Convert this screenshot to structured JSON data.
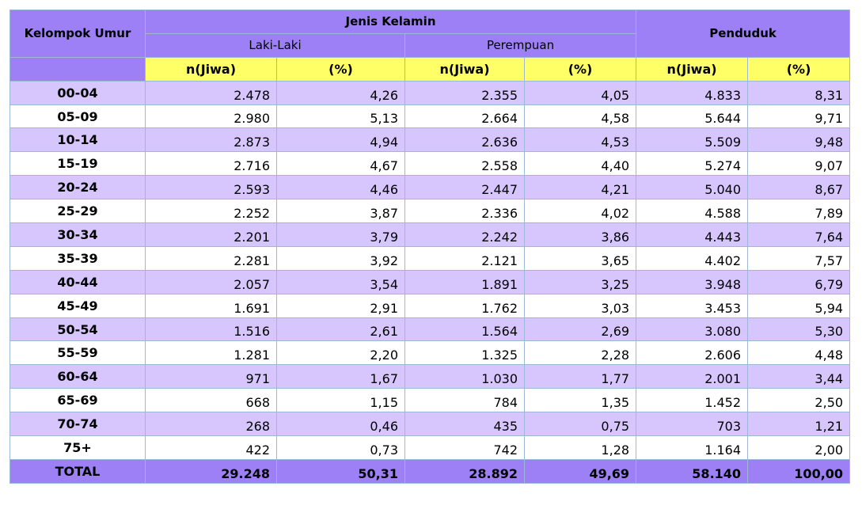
{
  "table": {
    "header": {
      "age_group": "Kelompok Umur",
      "sex": "Jenis Kelamin",
      "male": "Laki-Laki",
      "female": "Perempuan",
      "population": "Penduduk",
      "sub_headers": [
        "n(Jiwa)",
        "(%)",
        "n(Jiwa)",
        "(%)",
        "n(Jiwa)",
        "(%)"
      ]
    },
    "rows": [
      [
        "00-04",
        "2.478",
        "4,26",
        "2.355",
        "4,05",
        "4.833",
        "8,31"
      ],
      [
        "05-09",
        "2.980",
        "5,13",
        "2.664",
        "4,58",
        "5.644",
        "9,71"
      ],
      [
        "10-14",
        "2.873",
        "4,94",
        "2.636",
        "4,53",
        "5.509",
        "9,48"
      ],
      [
        "15-19",
        "2.716",
        "4,67",
        "2.558",
        "4,40",
        "5.274",
        "9,07"
      ],
      [
        "20-24",
        "2.593",
        "4,46",
        "2.447",
        "4,21",
        "5.040",
        "8,67"
      ],
      [
        "25-29",
        "2.252",
        "3,87",
        "2.336",
        "4,02",
        "4.588",
        "7,89"
      ],
      [
        "30-34",
        "2.201",
        "3,79",
        "2.242",
        "3,86",
        "4.443",
        "7,64"
      ],
      [
        "35-39",
        "2.281",
        "3,92",
        "2.121",
        "3,65",
        "4.402",
        "7,57"
      ],
      [
        "40-44",
        "2.057",
        "3,54",
        "1.891",
        "3,25",
        "3.948",
        "6,79"
      ],
      [
        "45-49",
        "1.691",
        "2,91",
        "1.762",
        "3,03",
        "3.453",
        "5,94"
      ],
      [
        "50-54",
        "1.516",
        "2,61",
        "1.564",
        "2,69",
        "3.080",
        "5,30"
      ],
      [
        "55-59",
        "1.281",
        "2,20",
        "1.325",
        "2,28",
        "2.606",
        "4,48"
      ],
      [
        "60-64",
        "971",
        "1,67",
        "1.030",
        "1,77",
        "2.001",
        "3,44"
      ],
      [
        "65-69",
        "668",
        "1,15",
        "784",
        "1,35",
        "1.452",
        "2,50"
      ],
      [
        "70-74",
        "268",
        "0,46",
        "435",
        "0,75",
        "703",
        "1,21"
      ],
      [
        "75+",
        "422",
        "0,73",
        "742",
        "1,28",
        "1.164",
        "2,00"
      ]
    ],
    "total": [
      "TOTAL",
      "29.248",
      "50,31",
      "28.892",
      "49,69",
      "58.140",
      "100,00"
    ]
  }
}
